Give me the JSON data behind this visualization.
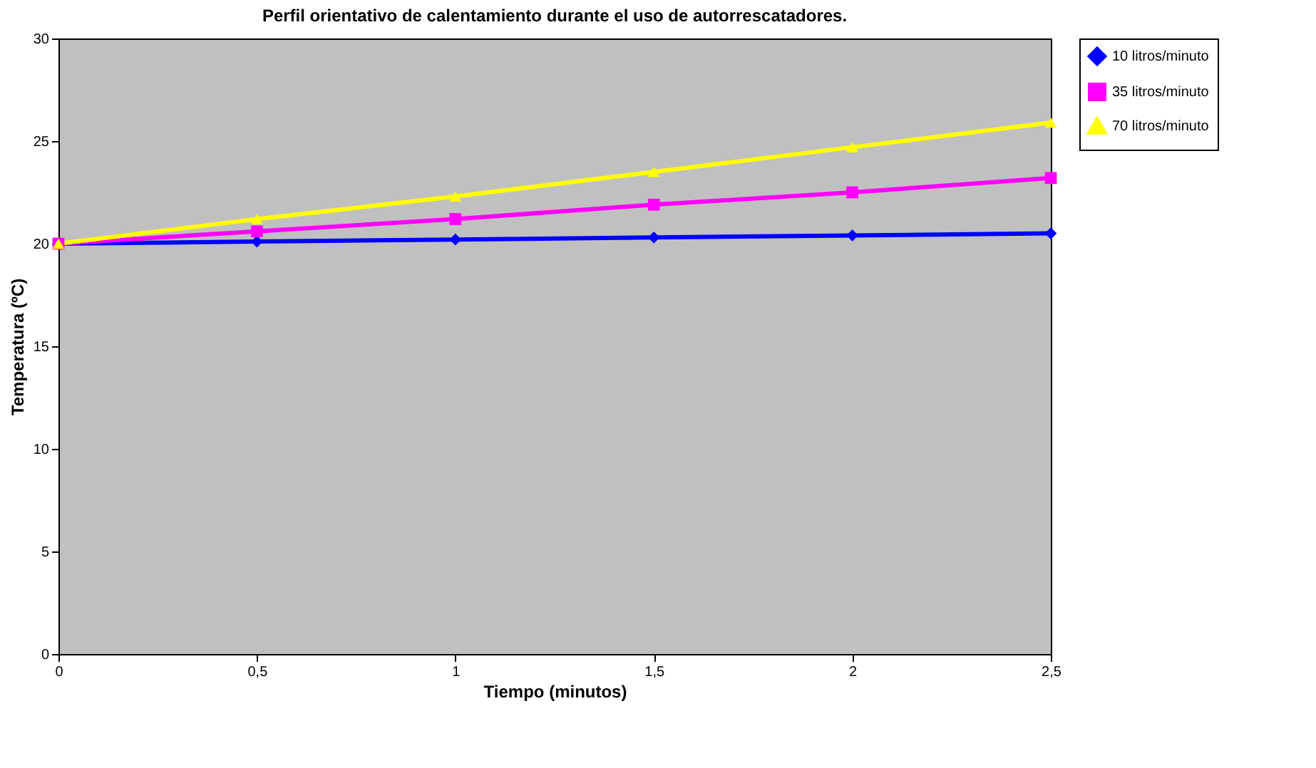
{
  "chart_data": {
    "type": "line",
    "title": "Perfil orientativo de calentamiento durante el uso de autorrescatadores.",
    "xlabel": "Tiempo (minutos)",
    "ylabel": "Temperatura (ºC)",
    "x": [
      0,
      0.5,
      1,
      1.5,
      2,
      2.5
    ],
    "series": [
      {
        "name": "10 litros/minuto",
        "color": "#0000ff",
        "marker": "diamond",
        "values": [
          20,
          20.1,
          20.2,
          20.3,
          20.4,
          20.5
        ]
      },
      {
        "name": "35 litros/minuto",
        "color": "#ff00ff",
        "marker": "square",
        "values": [
          20,
          20.6,
          21.2,
          21.9,
          22.5,
          23.2
        ]
      },
      {
        "name": "70 litros/minuto",
        "color": "#ffff00",
        "marker": "triangle",
        "values": [
          20,
          21.2,
          22.3,
          23.5,
          24.7,
          25.9
        ]
      }
    ],
    "xlim": [
      0,
      2.5
    ],
    "xticks": [
      0,
      {
        "value": 0.5,
        "label": "0,5"
      },
      1,
      {
        "value": 1.5,
        "label": "1,5"
      },
      2,
      {
        "value": 2.5,
        "label": "2,5"
      }
    ],
    "ylim": [
      0,
      30
    ],
    "yticks": [
      0,
      5,
      10,
      15,
      20,
      25,
      30
    ],
    "grid": false,
    "legend": "right"
  }
}
